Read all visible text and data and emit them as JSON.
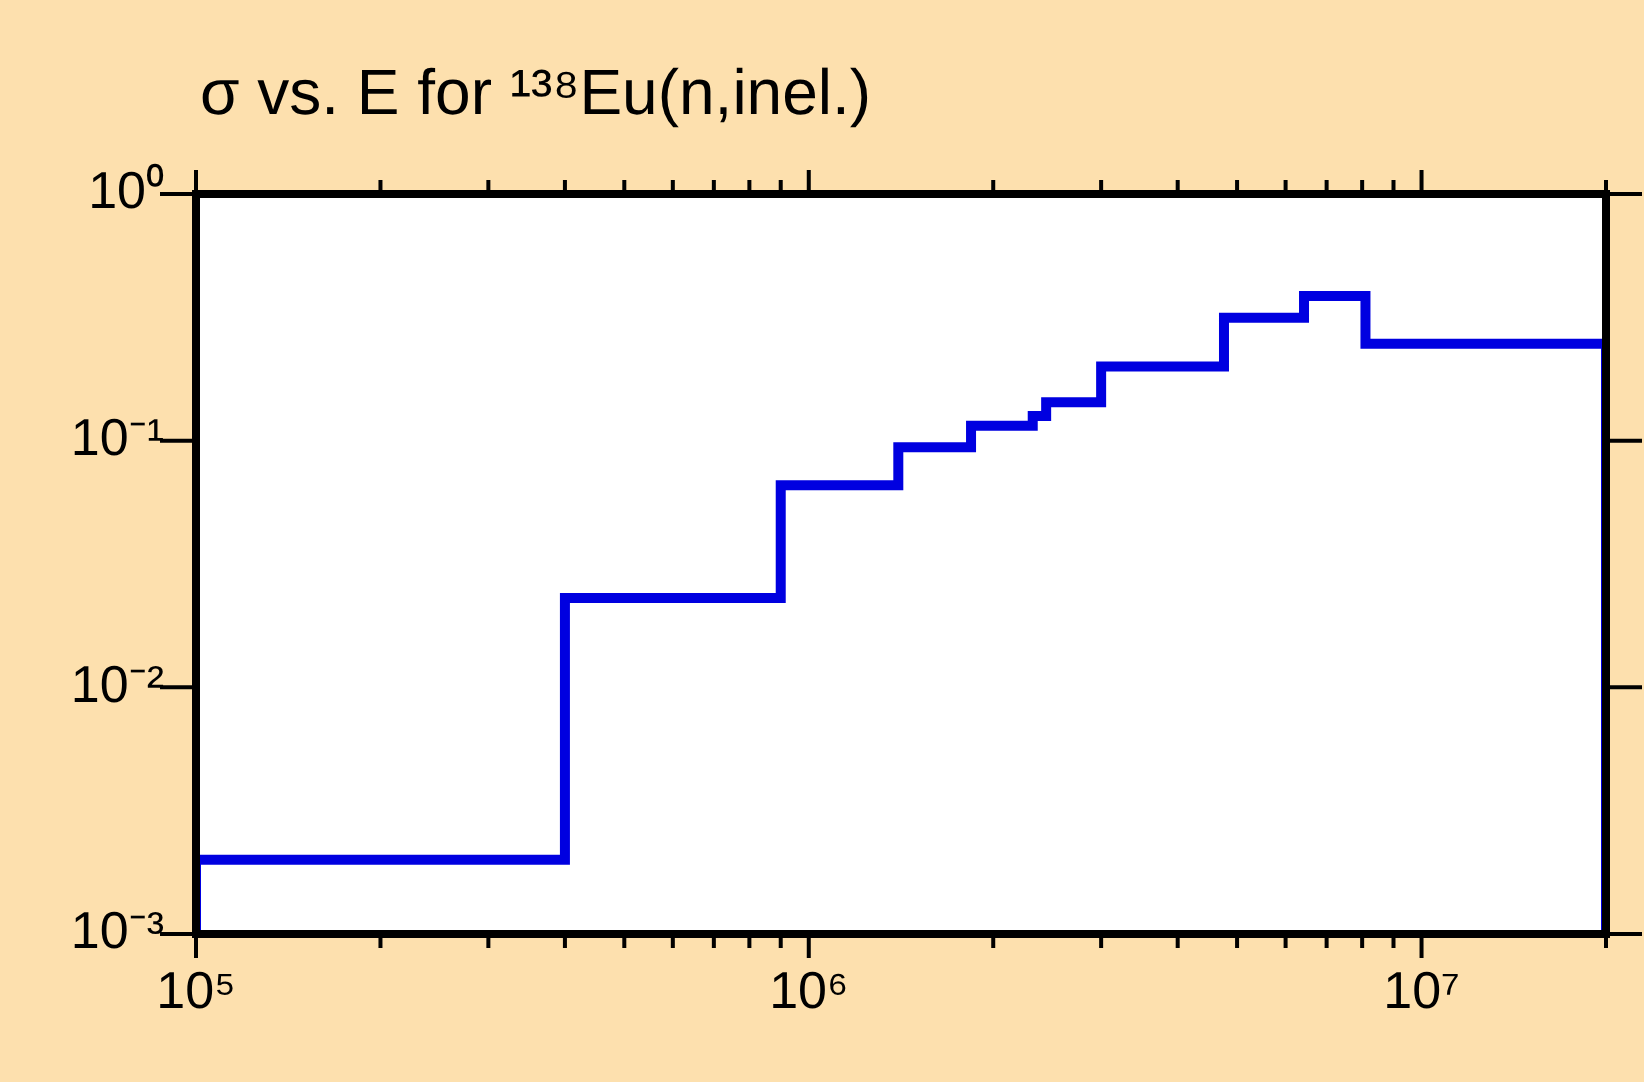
{
  "chart_data": {
    "type": "step",
    "title": "σ vs. E for ¹³⁸Eu(n,inel.)",
    "series": [
      {
        "color": "#0000e0",
        "x": [
          100000,
          100000,
          400000,
          900000,
          1400000,
          1840000,
          2320000,
          2440000,
          3000000,
          4760000,
          6430000,
          8100000,
          20000000,
          20000000
        ],
        "values": [
          0.001,
          0.002,
          0.023,
          0.066,
          0.094,
          0.115,
          0.126,
          0.143,
          0.2,
          0.315,
          0.386,
          0.247,
          0.247,
          0.001
        ]
      }
    ],
    "log": "xy",
    "grid": false,
    "legend": false,
    "xlim": [
      100000,
      20000000
    ],
    "xticks": [
      {
        "value": 100000,
        "label": "10⁵"
      },
      {
        "value": 200000,
        "label": null
      },
      {
        "value": 300000,
        "label": null
      },
      {
        "value": 400000,
        "label": null
      },
      {
        "value": 500000,
        "label": null
      },
      {
        "value": 600000,
        "label": null
      },
      {
        "value": 700000,
        "label": null
      },
      {
        "value": 800000,
        "label": null
      },
      {
        "value": 900000,
        "label": null
      },
      {
        "value": 1000000,
        "label": "10⁶"
      },
      {
        "value": 2000000,
        "label": null
      },
      {
        "value": 3000000,
        "label": null
      },
      {
        "value": 4000000,
        "label": null
      },
      {
        "value": 5000000,
        "label": null
      },
      {
        "value": 6000000,
        "label": null
      },
      {
        "value": 7000000,
        "label": null
      },
      {
        "value": 8000000,
        "label": null
      },
      {
        "value": 9000000,
        "label": null
      },
      {
        "value": 10000000,
        "label": "10⁷"
      },
      {
        "value": 20000000,
        "label": null
      }
    ],
    "ylim": [
      0.001,
      1
    ],
    "yticks": [
      {
        "value": 0.001,
        "label": "10⁻³"
      },
      {
        "value": 0.01,
        "label": "10⁻²"
      },
      {
        "value": 0.1,
        "label": "10⁻¹"
      },
      {
        "value": 1,
        "label": "10⁰"
      }
    ]
  }
}
